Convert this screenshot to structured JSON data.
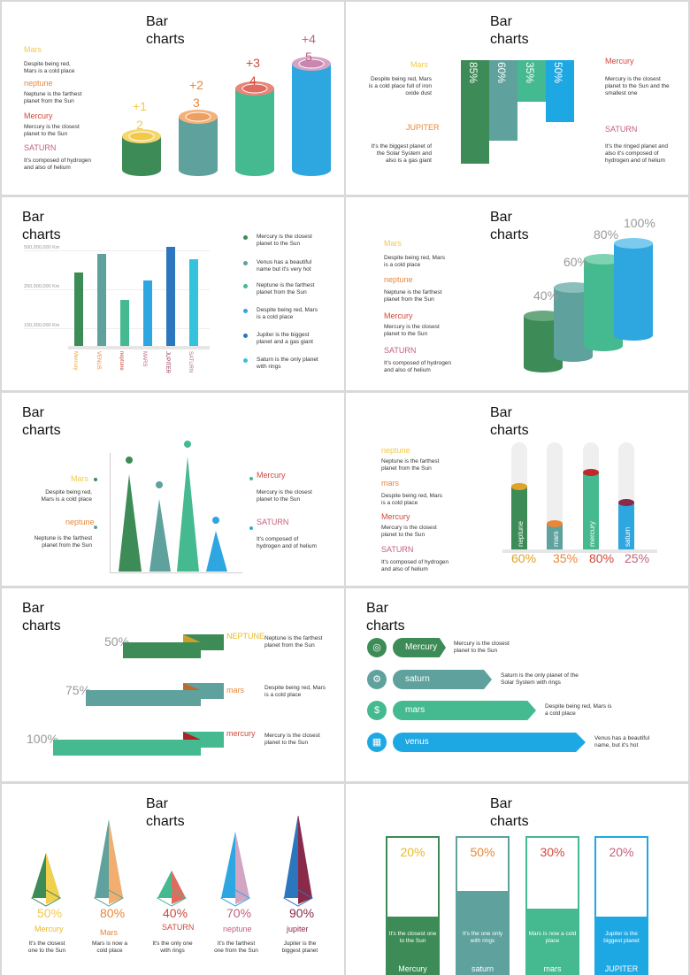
{
  "title": "Bar\ncharts",
  "s1": {
    "items": [
      {
        "name": "Mars",
        "desc": "Despite being red, Mars is a cold place"
      },
      {
        "name": "neptune",
        "desc": "Neptune is the farthest planet from the Sun"
      },
      {
        "name": "Mercury",
        "desc": "Mercury is the closest planet to the Sun"
      },
      {
        "name": "SATURN",
        "desc": "It's composed of hydrogen and also of helium"
      }
    ],
    "bars": [
      {
        "top": "+1",
        "num": "2"
      },
      {
        "top": "+2",
        "num": "3"
      },
      {
        "top": "+3",
        "num": "4"
      },
      {
        "top": "+4",
        "num": "5"
      }
    ]
  },
  "s2": {
    "left": [
      {
        "name": "Mars",
        "desc": "Despite being red, Mars is a cold place full of iron oxide dust"
      },
      {
        "name": "JUPITER",
        "desc": "It's the biggest planet of the Solar System and also is a gas giant"
      }
    ],
    "right": [
      {
        "name": "Mercury",
        "desc": "Mercury is the closest planet to the Sun and the smallest one"
      },
      {
        "name": "SATURN",
        "desc": "It's the ringed planet and also it's composed of hydrogen and of helium"
      }
    ],
    "values": [
      "85%",
      "60%",
      "35%",
      "50%"
    ]
  },
  "s3": {
    "yticks": [
      "500,000,000 Km",
      "250,000,000 Km",
      "100,000,000 Km"
    ],
    "categories": [
      "Mercury",
      "VENUS",
      "neptune",
      "MARS",
      "JUPITER",
      "SATURN"
    ],
    "legend": [
      "Mercury is the closest planet to the Sun",
      "Venus has a beautiful name but it's very hot",
      "Neptune is the farthest planet from the Sun",
      "Despite being red, Mars is a cold place",
      "Jupiter is the biggest planet and a gas giant",
      "Saturn is the only planet with rings"
    ]
  },
  "s4": {
    "items": [
      {
        "name": "Mars",
        "desc": "Despite being red, Mars is a cold place"
      },
      {
        "name": "neptune",
        "desc": "Neptune is the farthest planet from the Sun"
      },
      {
        "name": "Mercury",
        "desc": "Mercury is the closest planet to the Sun"
      },
      {
        "name": "SATURN",
        "desc": "It's composed of hydrogen and also of helium"
      }
    ],
    "values": [
      "40%",
      "60%",
      "80%",
      "100%"
    ]
  },
  "s5": {
    "left": [
      {
        "name": "Mars",
        "desc": "Despite being red, Mars is a cold place"
      },
      {
        "name": "neptune",
        "desc": "Neptune is the farthest planet from the Sun"
      }
    ],
    "right": [
      {
        "name": "Mercury",
        "desc": "Mercury is the closest planet to the Sun"
      },
      {
        "name": "SATURN",
        "desc": "It's composed of hydrogen and of helium"
      }
    ]
  },
  "s6": {
    "items": [
      {
        "name": "neptune",
        "desc": "Neptune is the farthest planet from the Sun"
      },
      {
        "name": "mars",
        "desc": "Despite being red, Mars is a cold place"
      },
      {
        "name": "Mercury",
        "desc": "Mercury is the closest planet to the Sun"
      },
      {
        "name": "SATURN",
        "desc": "It's composed of hydrogen and also of helium"
      }
    ],
    "bars": [
      {
        "label": "neptune",
        "value": "60%"
      },
      {
        "label": "mars",
        "value": "35%"
      },
      {
        "label": "mercury",
        "value": "80%"
      },
      {
        "label": "saturn",
        "value": "25%"
      }
    ]
  },
  "s7": {
    "rows": [
      {
        "value": "50%",
        "name": "NEPTUNE",
        "desc": "Neptune is the farthest planet from the Sun"
      },
      {
        "value": "75%",
        "name": "mars",
        "desc": "Despite being red, Mars is a cold place"
      },
      {
        "value": "100%",
        "name": "mercury",
        "desc": "Mercury is the closest planet to the Sun"
      }
    ]
  },
  "s8": {
    "rows": [
      {
        "label": "Mercury",
        "desc": "Mercury is the closest planet to the Sun"
      },
      {
        "label": "saturn",
        "desc": "Saturn is the only planet of the Solar System with rings"
      },
      {
        "label": "mars",
        "desc": "Despite being red, Mars is a cold place"
      },
      {
        "label": "venus",
        "desc": "Venus has a beautiful name, but it's hot"
      }
    ]
  },
  "s9": {
    "items": [
      {
        "value": "50%",
        "name": "Mercury",
        "desc": "It's the closest one to the Sun"
      },
      {
        "value": "80%",
        "name": "Mars",
        "desc": "Mars is now a cold place"
      },
      {
        "value": "40%",
        "name": "SATURN",
        "desc": "It's the only one with rings"
      },
      {
        "value": "70%",
        "name": "neptune",
        "desc": "It's the farthest one from the Sun"
      },
      {
        "value": "90%",
        "name": "jupiter",
        "desc": "Jupiter is the biggest planet"
      }
    ]
  },
  "s10": {
    "items": [
      {
        "value": "20%",
        "desc": "It's the closest one to the Sun",
        "name": "Mercury"
      },
      {
        "value": "50%",
        "desc": "It's the one only with rings",
        "name": "saturn"
      },
      {
        "value": "30%",
        "desc": "Mars is now a cold place",
        "name": "mars"
      },
      {
        "value": "20%",
        "desc": "Jupiter is the biggest planet",
        "name": "JUPITER"
      }
    ]
  }
}
